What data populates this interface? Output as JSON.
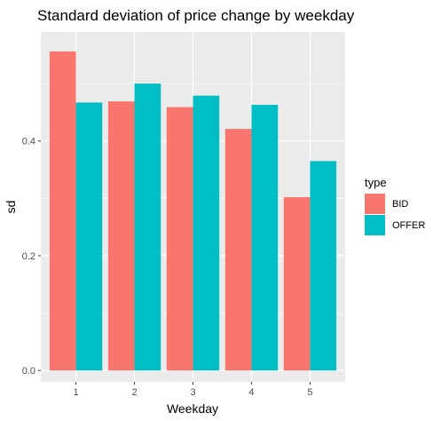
{
  "chart_data": {
    "type": "bar",
    "title": "Standard deviation of price change by weekday",
    "xlabel": "Weekday",
    "ylabel": "sd",
    "categories": [
      "1",
      "2",
      "3",
      "4",
      "5"
    ],
    "series": [
      {
        "name": "BID",
        "color": "#F8766D",
        "values": [
          0.556,
          0.469,
          0.459,
          0.421,
          0.302
        ]
      },
      {
        "name": "OFFER",
        "color": "#00BFC4",
        "values": [
          0.467,
          0.5,
          0.479,
          0.463,
          0.365
        ]
      }
    ],
    "yticks": [
      0.0,
      0.2,
      0.4
    ],
    "ytick_labels": [
      "0.0",
      "0.2",
      "0.4"
    ],
    "ylim": [
      -0.02,
      0.59
    ],
    "grid": true,
    "panel_color": "#EBEBEB",
    "legend": {
      "title": "type",
      "position": "right"
    }
  }
}
